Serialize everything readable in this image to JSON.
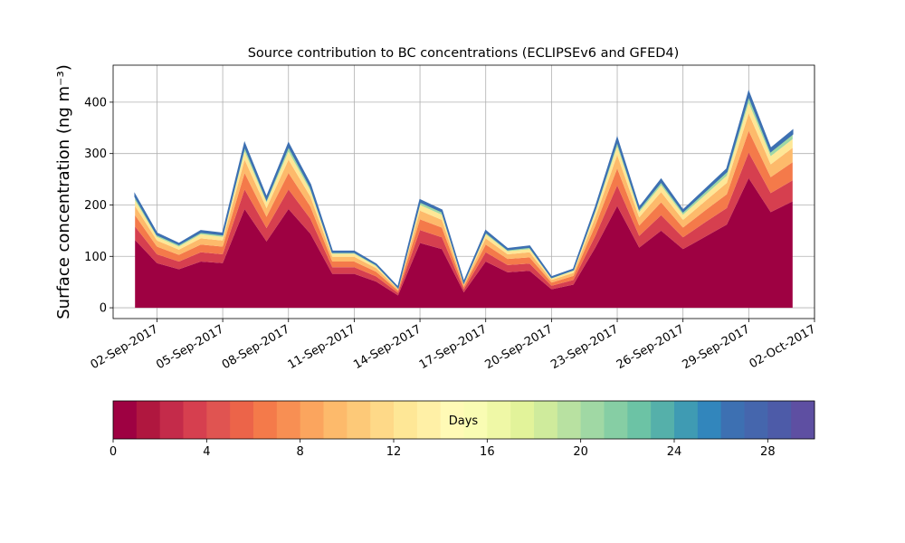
{
  "chart_data": {
    "type": "stacked_area",
    "title": "Source contribution to BC concentrations (ECLIPSEv6 and GFED4)",
    "ylabel": "Surface concentration (ng m⁻³)",
    "x": [
      "01-Sep-2017",
      "02-Sep-2017",
      "03-Sep-2017",
      "04-Sep-2017",
      "05-Sep-2017",
      "06-Sep-2017",
      "07-Sep-2017",
      "08-Sep-2017",
      "09-Sep-2017",
      "10-Sep-2017",
      "11-Sep-2017",
      "12-Sep-2017",
      "13-Sep-2017",
      "14-Sep-2017",
      "15-Sep-2017",
      "16-Sep-2017",
      "17-Sep-2017",
      "18-Sep-2017",
      "19-Sep-2017",
      "20-Sep-2017",
      "21-Sep-2017",
      "22-Sep-2017",
      "23-Sep-2017",
      "24-Sep-2017",
      "25-Sep-2017",
      "26-Sep-2017",
      "27-Sep-2017",
      "28-Sep-2017",
      "29-Sep-2017",
      "30-Sep-2017",
      "01-Oct-2017"
    ],
    "series": [
      {
        "color": "#9e0142",
        "values": [
          132,
          87,
          75,
          90,
          87,
          192,
          129,
          192,
          144,
          66,
          66,
          51,
          24,
          126,
          114,
          30,
          90,
          69,
          72,
          36,
          45,
          117,
          198,
          117,
          150,
          114,
          138,
          162,
          252,
          186,
          207
        ]
      },
      {
        "color": "#d63f4f",
        "values": [
          26,
          17,
          15,
          18,
          17,
          38,
          26,
          38,
          29,
          13,
          13,
          10,
          5,
          25,
          23,
          6,
          18,
          14,
          14,
          7,
          9,
          23,
          40,
          23,
          30,
          23,
          28,
          32,
          50,
          37,
          41
        ]
      },
      {
        "color": "#f47a4a",
        "values": [
          22,
          15,
          13,
          15,
          15,
          32,
          22,
          32,
          24,
          11,
          11,
          9,
          4,
          21,
          19,
          5,
          15,
          12,
          12,
          6,
          8,
          20,
          33,
          20,
          25,
          19,
          23,
          27,
          42,
          31,
          35
        ]
      },
      {
        "color": "#fdba6b",
        "values": [
          18,
          12,
          10,
          12,
          12,
          26,
          17,
          26,
          19,
          9,
          9,
          7,
          3,
          17,
          15,
          4,
          12,
          9,
          10,
          5,
          6,
          16,
          26,
          16,
          20,
          15,
          18,
          22,
          34,
          25,
          28
        ]
      },
      {
        "color": "#fee796",
        "values": [
          11,
          7,
          6,
          8,
          7,
          16,
          11,
          16,
          12,
          6,
          6,
          4,
          2,
          11,
          10,
          3,
          8,
          6,
          6,
          3,
          4,
          10,
          17,
          10,
          13,
          10,
          12,
          14,
          21,
          16,
          17
        ]
      },
      {
        "color": "#a0d8a4",
        "values": [
          7,
          4,
          4,
          4,
          4,
          10,
          6,
          10,
          7,
          3,
          3,
          3,
          1,
          6,
          6,
          1,
          4,
          3,
          4,
          2,
          2,
          6,
          10,
          6,
          7,
          6,
          7,
          8,
          13,
          9,
          10
        ]
      },
      {
        "color": "#3d70b2",
        "values": [
          4,
          3,
          2,
          3,
          3,
          6,
          4,
          6,
          5,
          2,
          2,
          1,
          1,
          4,
          3,
          1,
          3,
          2,
          2,
          1,
          1,
          3,
          6,
          3,
          5,
          3,
          4,
          5,
          8,
          6,
          7
        ]
      }
    ],
    "xlim": [
      "31-Aug-2017",
      "02-Oct-2017"
    ],
    "xticks": [
      "02-Sep-2017",
      "05-Sep-2017",
      "08-Sep-2017",
      "11-Sep-2017",
      "14-Sep-2017",
      "17-Sep-2017",
      "20-Sep-2017",
      "23-Sep-2017",
      "26-Sep-2017",
      "29-Sep-2017",
      "02-Oct-2017"
    ],
    "ylim": [
      -21,
      472
    ],
    "yticks": [
      0,
      100,
      200,
      300,
      400
    ],
    "grid": true,
    "colorbar": {
      "label": "Days",
      "lim": [
        0,
        30
      ],
      "ticks": [
        0,
        4,
        8,
        12,
        16,
        20,
        24,
        28
      ],
      "colors": [
        "#9e0142",
        "#b0173f",
        "#c42b4a",
        "#d63f4f",
        "#e05451",
        "#ec6449",
        "#f47a4a",
        "#f88f53",
        "#fba55e",
        "#fdba6b",
        "#fdc978",
        "#fed988",
        "#fee796",
        "#fff0a6",
        "#fffab6",
        "#f9fcb3",
        "#eff8a6",
        "#e2f39a",
        "#cfeb9c",
        "#b8e1a1",
        "#a0d8a4",
        "#86cea4",
        "#6cc3a5",
        "#55b0aa",
        "#3f9bb3",
        "#3286bc",
        "#3d70b2",
        "#4566ad",
        "#4d5ba8",
        "#5e4fa2"
      ]
    }
  }
}
